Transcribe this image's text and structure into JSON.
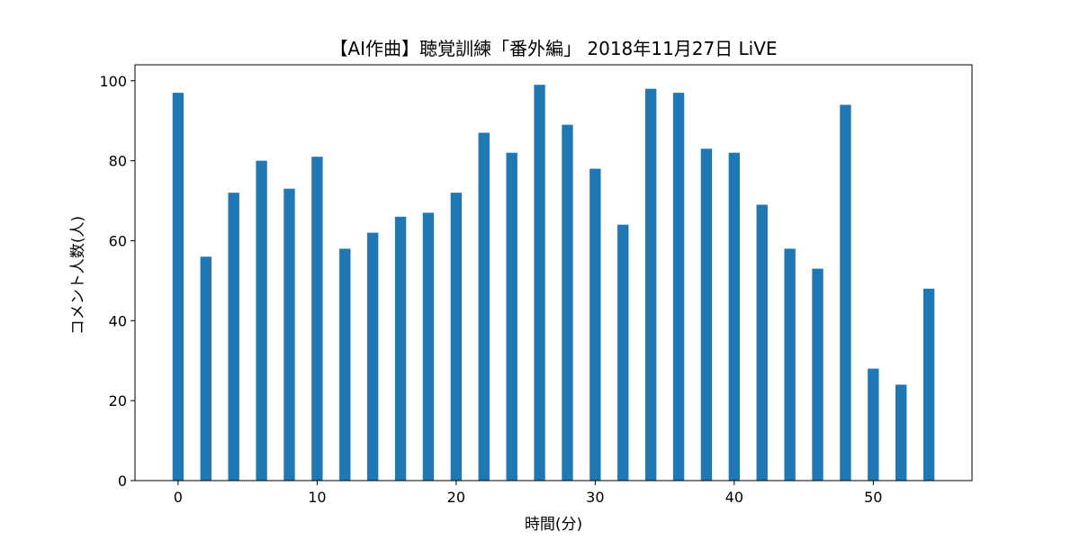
{
  "chart_data": {
    "type": "bar",
    "title": "【AI作曲】聴覚訓練「番外編」 2018年11月27日 LiVE",
    "xlabel": "時間(分)",
    "ylabel": "コメント人数(人)",
    "x": [
      0,
      2,
      4,
      6,
      8,
      10,
      12,
      14,
      16,
      18,
      20,
      22,
      24,
      26,
      28,
      30,
      32,
      34,
      36,
      38,
      40,
      42,
      44,
      46,
      48,
      50,
      52,
      54
    ],
    "values": [
      97,
      56,
      72,
      80,
      73,
      81,
      58,
      62,
      66,
      67,
      72,
      87,
      82,
      99,
      89,
      78,
      64,
      98,
      97,
      83,
      82,
      69,
      58,
      53,
      94,
      28,
      24,
      48
    ],
    "xlim": [
      -3.1,
      57.1
    ],
    "ylim": [
      0,
      104
    ],
    "xticks": [
      0,
      10,
      20,
      30,
      40,
      50
    ],
    "yticks": [
      0,
      20,
      40,
      60,
      80,
      100
    ],
    "bar_color": "#1f77b4",
    "grid": false,
    "legend": "none"
  }
}
